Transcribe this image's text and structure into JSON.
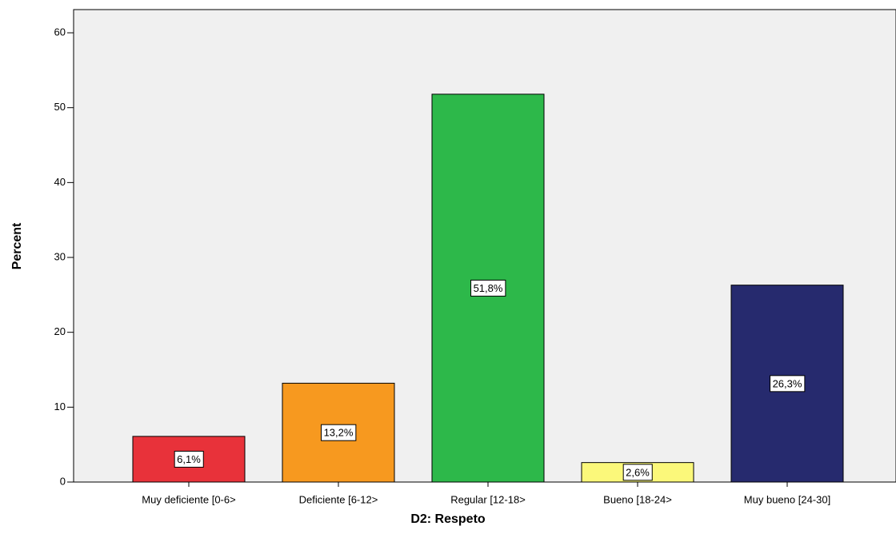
{
  "chart_data": {
    "type": "bar",
    "x_label": "D2: Respeto",
    "y_label": "Percent",
    "categories": [
      "Muy deficiente [0-6>",
      "Deficiente [6-12>",
      "Regular [12-18>",
      "Bueno [18-24>",
      "Muy bueno [24-30]"
    ],
    "values": [
      6.1,
      13.2,
      51.8,
      2.6,
      26.3
    ],
    "value_labels": [
      "6,1%",
      "13,2%",
      "51,8%",
      "2,6%",
      "26,3%"
    ],
    "colors": [
      "#e8323a",
      "#f7991f",
      "#2db84a",
      "#fbf87a",
      "#262a6e"
    ],
    "ylim": [
      0,
      63.1
    ],
    "yticks": [
      0,
      10,
      20,
      30,
      40,
      50,
      60
    ]
  }
}
